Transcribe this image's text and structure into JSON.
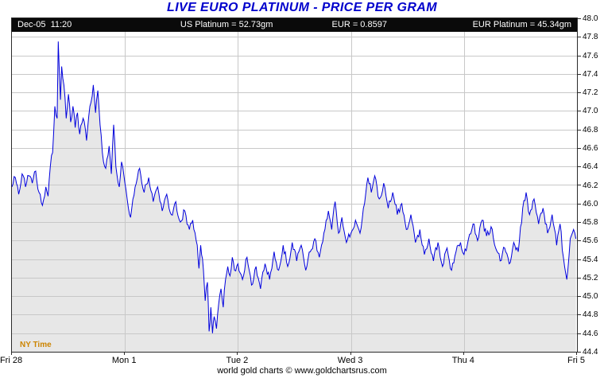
{
  "title": "LIVE EURO PLATINUM - PRICE PER GRAM",
  "header": {
    "timestamp": "Dec-05  11:20",
    "us_platinum": "US Platinum = 52.73gm",
    "eur_rate": "EUR = 0.8597",
    "eur_platinum": "EUR Platinum = 45.34gm"
  },
  "ny_time_label": "NY Time",
  "footer": "world gold charts © www.goldchartsrus.com",
  "colors": {
    "title": "#0000cc",
    "line": "#0000dd",
    "fill": "#e7e7e7",
    "grid": "#c8c8c8",
    "header_bg": "#0a0a0a",
    "header_text": "#ffffff",
    "ny_time": "#cc8400",
    "axis_text": "#000000"
  },
  "chart_data": {
    "type": "area",
    "title": "LIVE EURO PLATINUM - PRICE PER GRAM",
    "legend": "none",
    "grid": true,
    "x_axis": {
      "labels": [
        "Fri 28",
        "Mon 1",
        "Tue 2",
        "Wed 3",
        "Thu 4",
        "Fri 5"
      ],
      "positions": [
        0,
        1,
        2,
        3,
        4,
        5
      ],
      "range": [
        0,
        5
      ]
    },
    "y_axis": {
      "min": 44.4,
      "max": 48.0,
      "tick_step": 0.2,
      "ticks": [
        "48.0",
        "47.8",
        "47.6",
        "47.4",
        "47.2",
        "47.0",
        "46.8",
        "46.6",
        "46.4",
        "46.2",
        "46.0",
        "45.8",
        "45.6",
        "45.4",
        "45.2",
        "45.0",
        "44.8",
        "44.6",
        "44.4"
      ],
      "side": "right"
    },
    "series": [
      {
        "name": "EUR Platinum price per gram",
        "points": [
          [
            0.0,
            46.18
          ],
          [
            0.03,
            46.28
          ],
          [
            0.06,
            46.1
          ],
          [
            0.09,
            46.32
          ],
          [
            0.12,
            46.18
          ],
          [
            0.15,
            46.3
          ],
          [
            0.18,
            46.22
          ],
          [
            0.21,
            46.35
          ],
          [
            0.24,
            46.12
          ],
          [
            0.27,
            45.98
          ],
          [
            0.3,
            46.18
          ],
          [
            0.32,
            46.08
          ],
          [
            0.34,
            46.4
          ],
          [
            0.36,
            46.55
          ],
          [
            0.38,
            47.05
          ],
          [
            0.4,
            46.92
          ],
          [
            0.41,
            47.75
          ],
          [
            0.43,
            47.12
          ],
          [
            0.44,
            47.48
          ],
          [
            0.46,
            47.28
          ],
          [
            0.48,
            46.92
          ],
          [
            0.5,
            47.18
          ],
          [
            0.52,
            46.88
          ],
          [
            0.54,
            47.05
          ],
          [
            0.56,
            46.82
          ],
          [
            0.58,
            46.98
          ],
          [
            0.6,
            46.75
          ],
          [
            0.63,
            46.92
          ],
          [
            0.66,
            46.68
          ],
          [
            0.69,
            47.05
          ],
          [
            0.72,
            47.28
          ],
          [
            0.74,
            46.98
          ],
          [
            0.76,
            47.22
          ],
          [
            0.78,
            46.85
          ],
          [
            0.8,
            46.55
          ],
          [
            0.83,
            46.38
          ],
          [
            0.86,
            46.62
          ],
          [
            0.88,
            46.32
          ],
          [
            0.9,
            46.85
          ],
          [
            0.92,
            46.4
          ],
          [
            0.95,
            46.18
          ],
          [
            0.97,
            46.45
          ],
          [
            1.0,
            46.22
          ],
          [
            1.02,
            46.05
          ],
          [
            1.05,
            45.85
          ],
          [
            1.09,
            46.18
          ],
          [
            1.13,
            46.38
          ],
          [
            1.17,
            46.12
          ],
          [
            1.21,
            46.28
          ],
          [
            1.25,
            46.02
          ],
          [
            1.29,
            46.18
          ],
          [
            1.33,
            45.92
          ],
          [
            1.37,
            46.1
          ],
          [
            1.41,
            45.88
          ],
          [
            1.45,
            46.02
          ],
          [
            1.49,
            45.8
          ],
          [
            1.53,
            45.92
          ],
          [
            1.57,
            45.72
          ],
          [
            1.6,
            45.82
          ],
          [
            1.64,
            45.55
          ],
          [
            1.655,
            45.3
          ],
          [
            1.67,
            45.55
          ],
          [
            1.695,
            45.28
          ],
          [
            1.71,
            44.95
          ],
          [
            1.73,
            45.15
          ],
          [
            1.745,
            44.62
          ],
          [
            1.76,
            44.88
          ],
          [
            1.775,
            44.6
          ],
          [
            1.79,
            44.78
          ],
          [
            1.81,
            44.65
          ],
          [
            1.83,
            44.92
          ],
          [
            1.85,
            45.08
          ],
          [
            1.87,
            44.88
          ],
          [
            1.89,
            45.18
          ],
          [
            1.91,
            45.32
          ],
          [
            1.93,
            45.22
          ],
          [
            1.95,
            45.42
          ],
          [
            1.97,
            45.28
          ],
          [
            2.0,
            45.35
          ],
          [
            2.04,
            45.18
          ],
          [
            2.08,
            45.42
          ],
          [
            2.12,
            45.12
          ],
          [
            2.16,
            45.32
          ],
          [
            2.2,
            45.08
          ],
          [
            2.24,
            45.35
          ],
          [
            2.28,
            45.18
          ],
          [
            2.32,
            45.48
          ],
          [
            2.36,
            45.28
          ],
          [
            2.4,
            45.55
          ],
          [
            2.44,
            45.32
          ],
          [
            2.48,
            45.58
          ],
          [
            2.52,
            45.38
          ],
          [
            2.56,
            45.55
          ],
          [
            2.6,
            45.28
          ],
          [
            2.64,
            45.48
          ],
          [
            2.68,
            45.62
          ],
          [
            2.72,
            45.42
          ],
          [
            2.76,
            45.68
          ],
          [
            2.8,
            45.92
          ],
          [
            2.83,
            45.72
          ],
          [
            2.86,
            46.02
          ],
          [
            2.89,
            45.68
          ],
          [
            2.92,
            45.85
          ],
          [
            2.96,
            45.58
          ],
          [
            3.0,
            45.68
          ],
          [
            3.04,
            45.82
          ],
          [
            3.08,
            45.68
          ],
          [
            3.12,
            46.0
          ],
          [
            3.15,
            46.28
          ],
          [
            3.18,
            46.12
          ],
          [
            3.21,
            46.3
          ],
          [
            3.25,
            46.05
          ],
          [
            3.29,
            46.22
          ],
          [
            3.33,
            45.95
          ],
          [
            3.37,
            46.12
          ],
          [
            3.41,
            45.88
          ],
          [
            3.45,
            46.0
          ],
          [
            3.49,
            45.72
          ],
          [
            3.53,
            45.88
          ],
          [
            3.57,
            45.58
          ],
          [
            3.61,
            45.72
          ],
          [
            3.65,
            45.45
          ],
          [
            3.69,
            45.62
          ],
          [
            3.73,
            45.38
          ],
          [
            3.77,
            45.58
          ],
          [
            3.81,
            45.32
          ],
          [
            3.85,
            45.52
          ],
          [
            3.89,
            45.28
          ],
          [
            3.93,
            45.48
          ],
          [
            3.97,
            45.58
          ],
          [
            4.0,
            45.45
          ],
          [
            4.04,
            45.62
          ],
          [
            4.08,
            45.78
          ],
          [
            4.12,
            45.6
          ],
          [
            4.16,
            45.82
          ],
          [
            4.2,
            45.65
          ],
          [
            4.24,
            45.75
          ],
          [
            4.28,
            45.52
          ],
          [
            4.32,
            45.38
          ],
          [
            4.36,
            45.52
          ],
          [
            4.4,
            45.35
          ],
          [
            4.44,
            45.58
          ],
          [
            4.48,
            45.48
          ],
          [
            4.52,
            45.95
          ],
          [
            4.55,
            46.12
          ],
          [
            4.58,
            45.88
          ],
          [
            4.62,
            46.05
          ],
          [
            4.66,
            45.78
          ],
          [
            4.7,
            45.95
          ],
          [
            4.74,
            45.68
          ],
          [
            4.78,
            45.88
          ],
          [
            4.82,
            45.55
          ],
          [
            4.85,
            45.78
          ],
          [
            4.88,
            45.42
          ],
          [
            4.91,
            45.18
          ],
          [
            4.94,
            45.62
          ],
          [
            4.97,
            45.72
          ],
          [
            4.99,
            45.62
          ]
        ]
      }
    ]
  }
}
